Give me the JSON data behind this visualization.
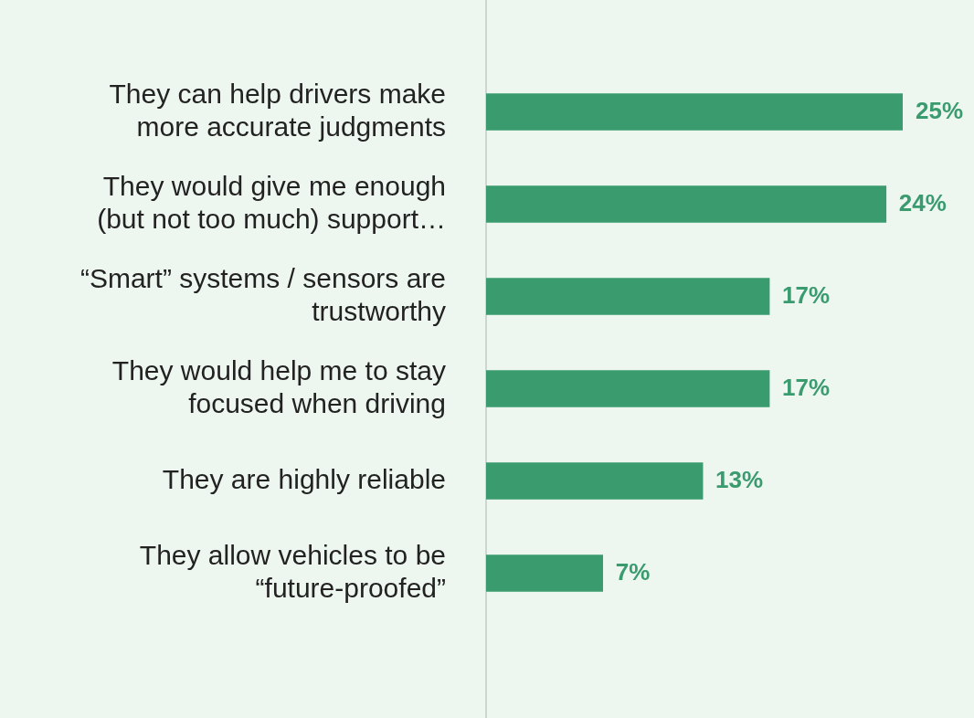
{
  "chart_data": {
    "type": "bar",
    "orientation": "horizontal",
    "categories": [
      "They can help drivers make more accurate judgments",
      "They would give me enough (but not too much) support…",
      "“Smart” systems / sensors are trustworthy",
      "They would help me to stay focused when driving",
      "They are highly reliable",
      "They allow vehicles to be “future-proofed”"
    ],
    "values": [
      25,
      24,
      17,
      17,
      13,
      7
    ],
    "value_labels": [
      "25%",
      "24%",
      "17%",
      "17%",
      "13%",
      "7%"
    ],
    "color": "#3a9b6f",
    "legend": false
  }
}
